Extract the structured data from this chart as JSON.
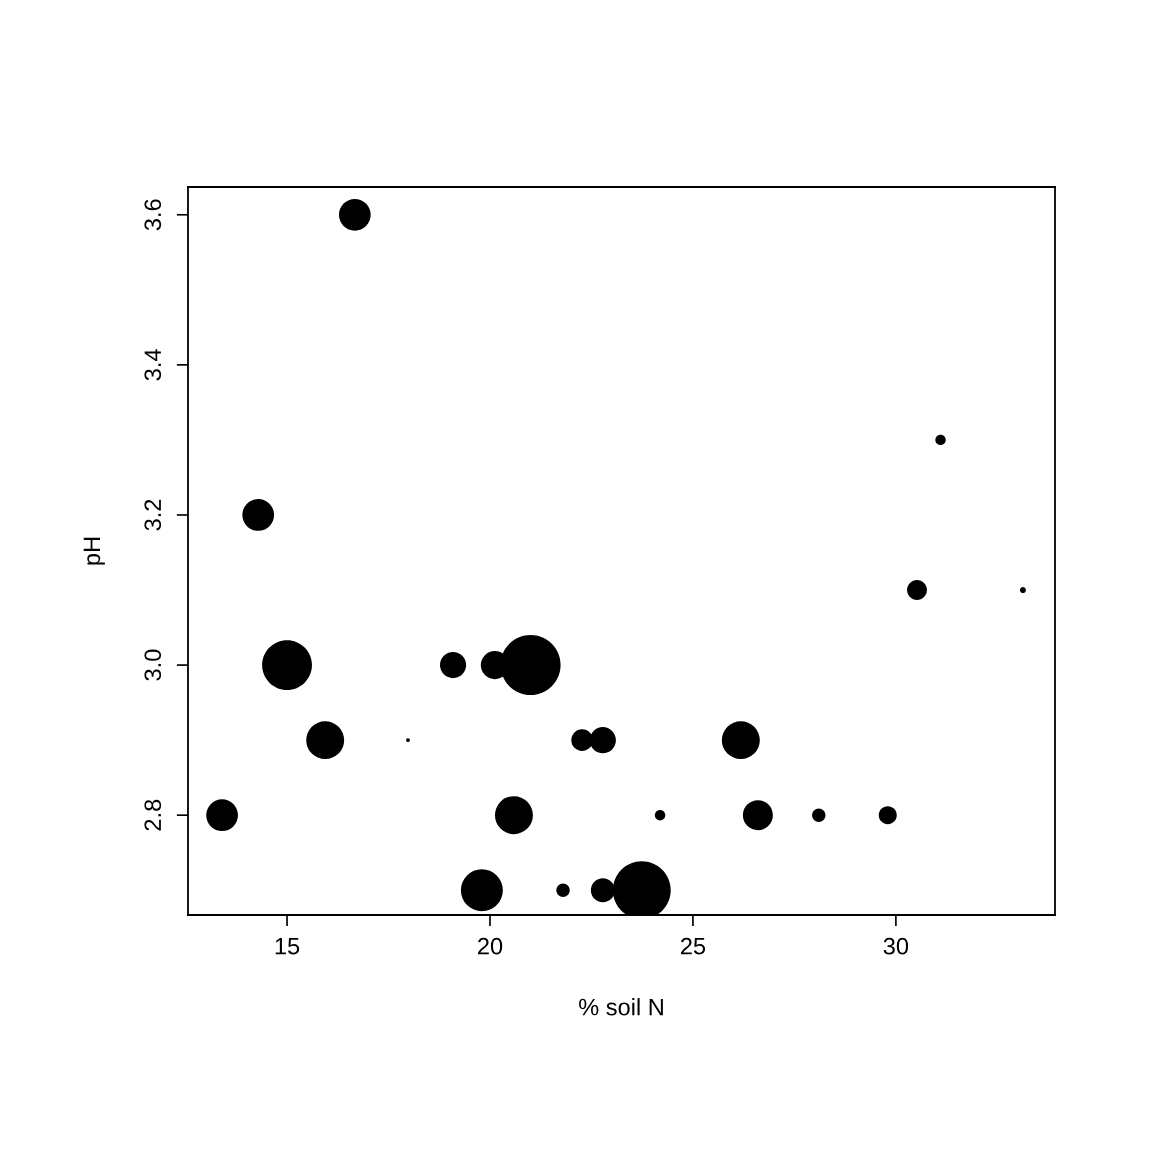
{
  "chart_data": {
    "type": "bubble",
    "xlabel": "% soil N",
    "ylabel": "pH",
    "x": [
      16.67,
      31.1,
      14.29,
      30.52,
      33.13,
      15.0,
      19.09,
      20.12,
      21.0,
      15.94,
      17.98,
      22.27,
      22.78,
      26.18,
      13.4,
      20.59,
      24.19,
      26.6,
      28.1,
      29.8,
      19.8,
      21.8,
      22.78,
      23.74
    ],
    "values": [
      3.6,
      3.3,
      3.2,
      3.1,
      3.1,
      3.0,
      3.0,
      3.0,
      3.0,
      2.9,
      2.9,
      2.9,
      2.9,
      2.9,
      2.8,
      2.8,
      2.8,
      2.8,
      2.8,
      2.8,
      2.7,
      2.7,
      2.7,
      2.7
    ],
    "sizes": [
      0.28,
      0.03,
      0.28,
      0.11,
      0.01,
      0.69,
      0.19,
      0.22,
      1,
      0.4,
      0.004,
      0.13,
      0.19,
      0.4,
      0.28,
      0.4,
      0.03,
      0.25,
      0.05,
      0.09,
      0.49,
      0.05,
      0.16,
      0.93
    ],
    "color": "#000000",
    "xlim": [
      12.56,
      33.92
    ],
    "ylim": [
      2.667,
      3.637
    ],
    "xticks": [
      15,
      20,
      25,
      30
    ],
    "yticks": [
      2.8,
      {
        "value": 3.0,
        "label": "3.0"
      },
      3.2,
      3.4,
      3.6
    ],
    "grid": false
  }
}
